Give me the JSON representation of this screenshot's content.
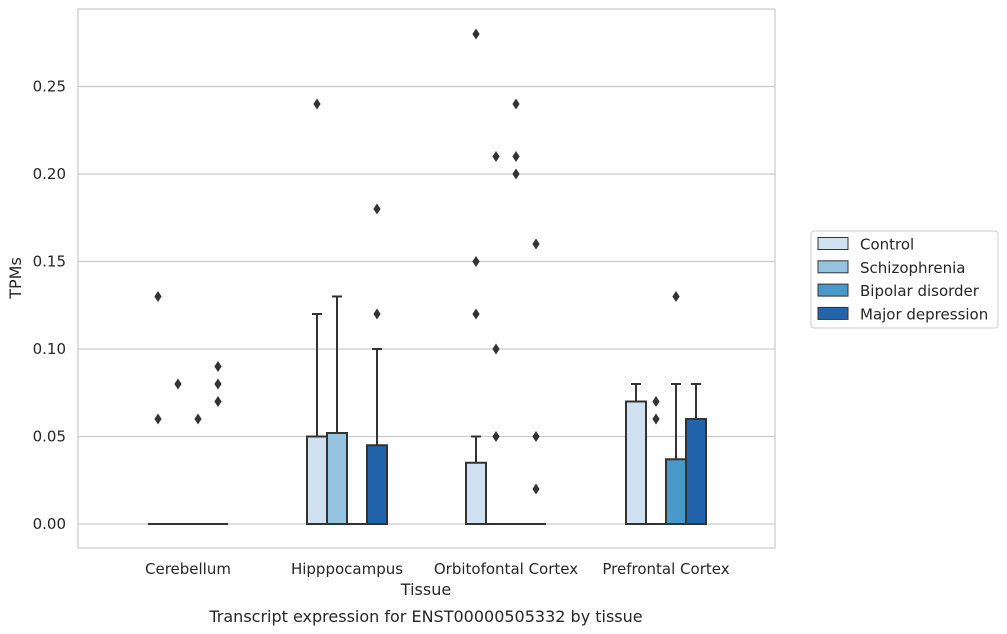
{
  "caption": "Transcript expression for ENST00000505332 by tissue",
  "chart_data": {
    "type": "box",
    "xlabel": "Tissue",
    "ylabel": "TPMs",
    "ylim": [
      -0.014,
      0.295
    ],
    "yticks": [
      0.0,
      0.05,
      0.1,
      0.15,
      0.2,
      0.25
    ],
    "ytick_labels": [
      "0.00",
      "0.05",
      "0.10",
      "0.15",
      "0.20",
      "0.25"
    ],
    "grid": "horizontal",
    "legend_position": "right",
    "categories": [
      "Cerebellum",
      "Hipppocampus",
      "Orbitofontal Cortex",
      "Prefrontal Cortex"
    ],
    "series": [
      {
        "name": "Control",
        "color": "#d0e1f2",
        "boxes": [
          {
            "q1": 0,
            "median": 0,
            "q3": 0,
            "whisker_low": 0,
            "whisker_high": 0,
            "outliers": [
              0.13,
              0.06
            ]
          },
          {
            "q1": 0,
            "median": 0,
            "q3": 0.05,
            "whisker_low": 0,
            "whisker_high": 0.12,
            "outliers": [
              0.24
            ]
          },
          {
            "q1": 0,
            "median": 0,
            "q3": 0.035,
            "whisker_low": 0,
            "whisker_high": 0.05,
            "outliers": [
              0.28,
              0.15,
              0.12
            ]
          },
          {
            "q1": 0,
            "median": 0,
            "q3": 0.07,
            "whisker_low": 0,
            "whisker_high": 0.08,
            "outliers": []
          }
        ]
      },
      {
        "name": "Schizophrenia",
        "color": "#94c4df",
        "boxes": [
          {
            "q1": 0,
            "median": 0,
            "q3": 0,
            "whisker_low": 0,
            "whisker_high": 0,
            "outliers": [
              0.08
            ]
          },
          {
            "q1": 0,
            "median": 0,
            "q3": 0.052,
            "whisker_low": 0,
            "whisker_high": 0.13,
            "outliers": []
          },
          {
            "q1": 0,
            "median": 0,
            "q3": 0,
            "whisker_low": 0,
            "whisker_high": 0,
            "outliers": [
              0.21,
              0.1,
              0.05
            ]
          },
          {
            "q1": 0,
            "median": 0,
            "q3": 0,
            "whisker_low": 0,
            "whisker_high": 0,
            "outliers": [
              0.07,
              0.06
            ]
          }
        ]
      },
      {
        "name": "Bipolar disorder",
        "color": "#4a98c9",
        "boxes": [
          {
            "q1": 0,
            "median": 0,
            "q3": 0,
            "whisker_low": 0,
            "whisker_high": 0,
            "outliers": [
              0.06
            ]
          },
          {
            "q1": 0,
            "median": 0,
            "q3": 0,
            "whisker_low": 0,
            "whisker_high": 0,
            "outliers": []
          },
          {
            "q1": 0,
            "median": 0,
            "q3": 0,
            "whisker_low": 0,
            "whisker_high": 0,
            "outliers": [
              0.24,
              0.21,
              0.2
            ]
          },
          {
            "q1": 0,
            "median": 0,
            "q3": 0.037,
            "whisker_low": 0,
            "whisker_high": 0.08,
            "outliers": [
              0.13
            ]
          }
        ]
      },
      {
        "name": "Major depression",
        "color": "#2164ab",
        "boxes": [
          {
            "q1": 0,
            "median": 0,
            "q3": 0,
            "whisker_low": 0,
            "whisker_high": 0,
            "outliers": [
              0.09,
              0.08,
              0.07
            ]
          },
          {
            "q1": 0,
            "median": 0,
            "q3": 0.045,
            "whisker_low": 0,
            "whisker_high": 0.1,
            "outliers": [
              0.18,
              0.12
            ]
          },
          {
            "q1": 0,
            "median": 0,
            "q3": 0,
            "whisker_low": 0,
            "whisker_high": 0,
            "outliers": [
              0.16,
              0.05,
              0.02
            ]
          },
          {
            "q1": 0,
            "median": 0,
            "q3": 0.06,
            "whisker_low": 0,
            "whisker_high": 0.08,
            "outliers": []
          }
        ]
      }
    ]
  }
}
